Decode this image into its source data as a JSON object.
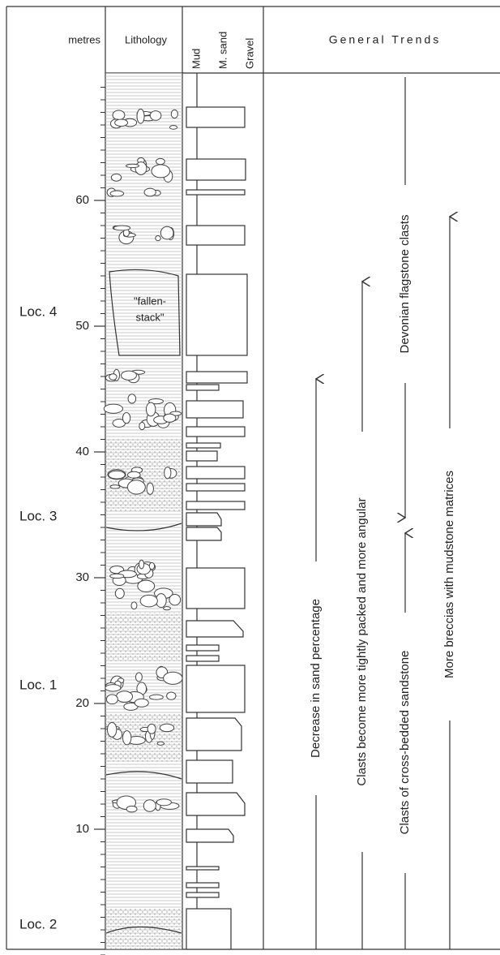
{
  "header": {
    "scale": "metres",
    "lithology": "Lithology",
    "grain_sizes": [
      "Mud",
      "M. sand",
      "Gravel"
    ],
    "trends": "General Trends"
  },
  "scale_ticks": [
    10,
    20,
    30,
    40,
    50,
    60
  ],
  "localities": [
    {
      "label": "Loc. 4"
    },
    {
      "label": "Loc. 3"
    },
    {
      "label": "Loc. 1"
    },
    {
      "label": "Loc. 2"
    }
  ],
  "lithology_note": [
    "\"fallen-",
    "stack\""
  ],
  "trends": [
    "Decrease in sand percentage",
    "Clasts become more tightly packed and more angular",
    "Clasts of cross-bedded sandstone",
    "Devonian flagstone clasts",
    "More breccias with mudstone matrices"
  ]
}
